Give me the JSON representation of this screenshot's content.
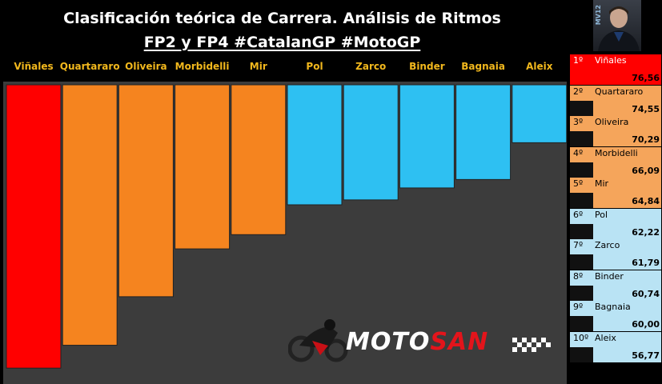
{
  "header": {
    "title": "Clasificación teórica de Carrera. Análisis de Ritmos",
    "subtitle": "FP2 y FP4 #CatalanGP #MotoGP"
  },
  "logo": {
    "text_left": "MOTO",
    "text_right": "SAN",
    "icon": "motorcycle-rider-icon"
  },
  "photo": {
    "icon": "rider-portrait-icon",
    "badge": "MV12"
  },
  "colors": {
    "first": "#ff0000",
    "orange": "#f5841f",
    "blue": "#2ec0f2",
    "panel_blue": "#b9e3f4",
    "panel_orange": "#f5a55b",
    "background": "#3c3c3c",
    "label": "#f2b81d"
  },
  "chart_data": {
    "type": "bar",
    "title": "Clasificación teórica de Carrera. Análisis de Ritmos",
    "subtitle": "FP2 y FP4 #CatalanGP #MotoGP",
    "categories": [
      "Viñales",
      "Quartararo",
      "Oliveira",
      "Morbidelli",
      "Mir",
      "Pol",
      "Zarco",
      "Binder",
      "Bagnaia",
      "Aleix"
    ],
    "values": [
      76.56,
      74.55,
      70.29,
      66.09,
      64.84,
      62.22,
      61.79,
      60.74,
      60.0,
      56.77
    ],
    "value_labels": [
      "76,56",
      "74,55",
      "70,29",
      "66,09",
      "64,84",
      "62,22",
      "61,79",
      "60,74",
      "60,00",
      "56,77"
    ],
    "ylim": [
      50,
      80
    ],
    "grid": false,
    "legend": "none"
  },
  "ranking": [
    {
      "pos": "1º",
      "name": "Viñales",
      "value": "76,56"
    },
    {
      "pos": "2º",
      "name": "Quartararo",
      "value": "74,55"
    },
    {
      "pos": "3º",
      "name": "Oliveira",
      "value": "70,29"
    },
    {
      "pos": "4º",
      "name": "Morbidelli",
      "value": "66,09"
    },
    {
      "pos": "5º",
      "name": "Mir",
      "value": "64,84"
    },
    {
      "pos": "6º",
      "name": "Pol",
      "value": "62,22"
    },
    {
      "pos": "7º",
      "name": "Zarco",
      "value": "61,79"
    },
    {
      "pos": "8º",
      "name": "Binder",
      "value": "60,74"
    },
    {
      "pos": "9º",
      "name": "Bagnaia",
      "value": "60,00"
    },
    {
      "pos": "10º",
      "name": "Aleix",
      "value": "56,77"
    }
  ]
}
